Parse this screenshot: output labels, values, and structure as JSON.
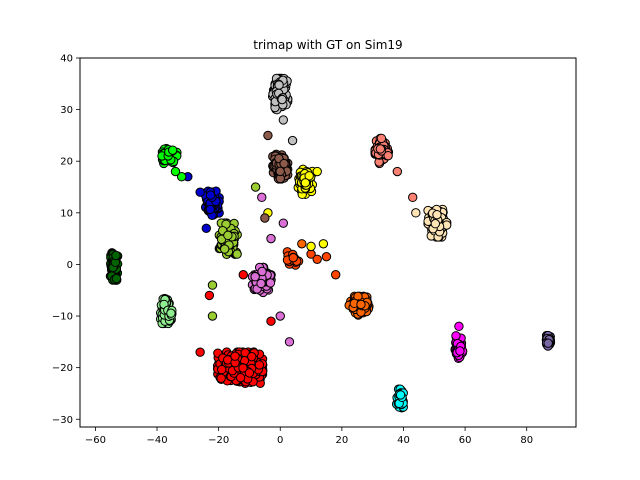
{
  "chart_data": {
    "type": "scatter",
    "title": "trimap with GT on Sim19",
    "xlabel": "",
    "ylabel": "",
    "xlim": [
      -65,
      96
    ],
    "ylim": [
      -31.5,
      40
    ],
    "xticks": [
      -60,
      -40,
      -20,
      0,
      20,
      40,
      60,
      80
    ],
    "yticks": [
      -30,
      -20,
      -10,
      0,
      10,
      20,
      30,
      40
    ],
    "grid": false,
    "legend": "none",
    "marker_edge_color": "#000000",
    "clusters": [
      {
        "color": "#c0c0c0",
        "center": [
          0,
          33
        ],
        "spread": [
          2.0,
          2.5
        ],
        "n": 130
      },
      {
        "color": "#00ff00",
        "center": [
          -36,
          21
        ],
        "spread": [
          2.0,
          1.2
        ],
        "n": 90
      },
      {
        "color": "#fa8072",
        "center": [
          33,
          22
        ],
        "spread": [
          1.8,
          2.0
        ],
        "n": 110
      },
      {
        "color": "#8b5a4a",
        "center": [
          0,
          19
        ],
        "spread": [
          2.0,
          2.0
        ],
        "n": 110
      },
      {
        "color": "#ffff00",
        "center": [
          8,
          16
        ],
        "spread": [
          2.0,
          2.0
        ],
        "n": 70
      },
      {
        "color": "#0000cd",
        "center": [
          -22,
          12
        ],
        "spread": [
          1.8,
          2.3
        ],
        "n": 100
      },
      {
        "color": "#ffe4b5",
        "center": [
          51,
          8
        ],
        "spread": [
          2.5,
          2.2
        ],
        "n": 140
      },
      {
        "color": "#9acd32",
        "center": [
          -17,
          5
        ],
        "spread": [
          2.5,
          2.5
        ],
        "n": 110
      },
      {
        "color": "#006400",
        "center": [
          -54,
          0
        ],
        "spread": [
          1.0,
          2.5
        ],
        "n": 100
      },
      {
        "color": "#da70d6",
        "center": [
          -6,
          -3
        ],
        "spread": [
          2.5,
          2.0
        ],
        "n": 110
      },
      {
        "color": "#ff4500",
        "center": [
          4,
          1
        ],
        "spread": [
          2.5,
          1.2
        ],
        "n": 20
      },
      {
        "color": "#90ee90",
        "center": [
          -37,
          -9
        ],
        "spread": [
          1.5,
          2.0
        ],
        "n": 80
      },
      {
        "color": "#ff6600",
        "center": [
          26,
          -8
        ],
        "spread": [
          3.0,
          1.5
        ],
        "n": 110
      },
      {
        "color": "#ff0000",
        "center": [
          -13,
          -20
        ],
        "spread": [
          6.0,
          2.5
        ],
        "n": 450
      },
      {
        "color": "#ff00ff",
        "center": [
          58,
          -16
        ],
        "spread": [
          1.0,
          1.8
        ],
        "n": 70
      },
      {
        "color": "#7b68a6",
        "center": [
          87,
          -15
        ],
        "spread": [
          0.8,
          1.0
        ],
        "n": 50
      },
      {
        "color": "#00ffff",
        "center": [
          39,
          -26
        ],
        "spread": [
          1.0,
          1.5
        ],
        "n": 70
      }
    ],
    "outliers": [
      {
        "x": -30,
        "y": 17,
        "color": "#0000cd"
      },
      {
        "x": -32,
        "y": 17,
        "color": "#00ff00"
      },
      {
        "x": -34,
        "y": 18,
        "color": "#00ff00"
      },
      {
        "x": -26,
        "y": 14,
        "color": "#0000cd"
      },
      {
        "x": -24,
        "y": 7,
        "color": "#0000cd"
      },
      {
        "x": -23,
        "y": -6,
        "color": "#ff0000"
      },
      {
        "x": -22,
        "y": -4,
        "color": "#9acd32"
      },
      {
        "x": -22,
        "y": -10,
        "color": "#9acd32"
      },
      {
        "x": -26,
        "y": -17,
        "color": "#ff0000"
      },
      {
        "x": -12,
        "y": -2,
        "color": "#ff0000"
      },
      {
        "x": -3,
        "y": -11,
        "color": "#ff0000"
      },
      {
        "x": 0,
        "y": -10,
        "color": "#da70d6"
      },
      {
        "x": 3,
        "y": -15,
        "color": "#da70d6"
      },
      {
        "x": 4,
        "y": 24,
        "color": "#c0c0c0"
      },
      {
        "x": 1,
        "y": 28,
        "color": "#c0c0c0"
      },
      {
        "x": -4,
        "y": 25,
        "color": "#8b5a4a"
      },
      {
        "x": 12,
        "y": 18,
        "color": "#ffff00"
      },
      {
        "x": -4,
        "y": 10,
        "color": "#ffff00"
      },
      {
        "x": -6,
        "y": 13,
        "color": "#da70d6"
      },
      {
        "x": -5,
        "y": 9,
        "color": "#8b5a4a"
      },
      {
        "x": -3,
        "y": 5,
        "color": "#da70d6"
      },
      {
        "x": 1,
        "y": 8,
        "color": "#da70d6"
      },
      {
        "x": -14,
        "y": 2,
        "color": "#9acd32"
      },
      {
        "x": -8,
        "y": 15,
        "color": "#9acd32"
      },
      {
        "x": 10,
        "y": 2,
        "color": "#ff4500"
      },
      {
        "x": 12,
        "y": 1,
        "color": "#ff4500"
      },
      {
        "x": 15,
        "y": 1.5,
        "color": "#ff4500"
      },
      {
        "x": 18,
        "y": -2,
        "color": "#ff4500"
      },
      {
        "x": 14,
        "y": 4,
        "color": "#ffff00"
      },
      {
        "x": 10,
        "y": 3.5,
        "color": "#ffff00"
      },
      {
        "x": 7,
        "y": 4,
        "color": "#ff6600"
      },
      {
        "x": 43,
        "y": 13,
        "color": "#fa8072"
      },
      {
        "x": 38,
        "y": 18,
        "color": "#fa8072"
      },
      {
        "x": 44,
        "y": 10,
        "color": "#ffe4b5"
      },
      {
        "x": 58,
        "y": -12,
        "color": "#ff00ff"
      }
    ]
  }
}
